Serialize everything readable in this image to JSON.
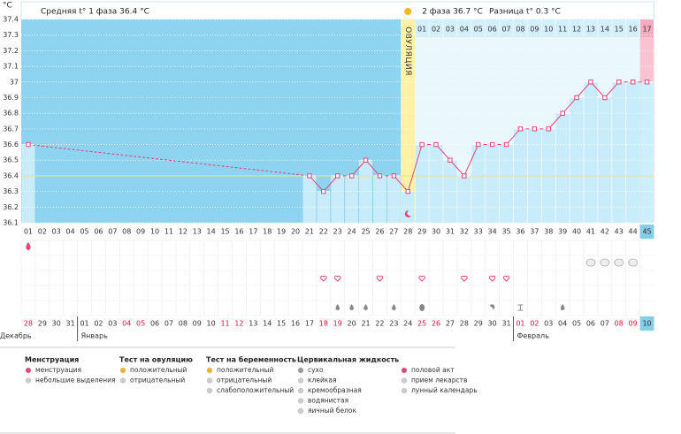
{
  "chart_data": {
    "type": "line",
    "ylabel": "°C",
    "phase1_label": "Средняя t° 1 фаза 36.4 °C",
    "phase2_label": "2 фаза 36.7 °C",
    "difference_label": "Разница t° 0.3 °C",
    "ovulation_label": "ОВУЛЯЦИЯ",
    "ovulation_day": "28",
    "coverline": 36.4,
    "color": "#e0457a",
    "categories": [
      "01",
      "02",
      "03",
      "04",
      "05",
      "06",
      "07",
      "08",
      "09",
      "10",
      "11",
      "12",
      "13",
      "14",
      "15",
      "16",
      "17",
      "18",
      "19",
      "20",
      "21",
      "22",
      "23",
      "24",
      "25",
      "26",
      "27",
      "28",
      "29",
      "30",
      "31",
      "32",
      "33",
      "34",
      "35",
      "36",
      "37",
      "38",
      "39",
      "40",
      "41",
      "42",
      "43",
      "44",
      "45"
    ],
    "values": [
      36.6,
      null,
      null,
      null,
      null,
      null,
      null,
      null,
      null,
      null,
      null,
      null,
      null,
      null,
      null,
      null,
      null,
      null,
      null,
      null,
      36.4,
      36.3,
      36.4,
      36.4,
      36.5,
      36.4,
      36.4,
      36.3,
      36.6,
      36.6,
      36.5,
      36.4,
      36.6,
      36.6,
      36.6,
      36.7,
      36.7,
      36.7,
      36.8,
      36.9,
      37.0,
      36.9,
      37.0,
      37.0,
      37.0
    ],
    "phase2_days": [
      "01",
      "02",
      "03",
      "04",
      "05",
      "06",
      "07",
      "08",
      "09",
      "10",
      "11",
      "12",
      "13",
      "14",
      "15",
      "16",
      "17"
    ],
    "ylim": [
      36.1,
      37.4
    ],
    "yticks": [
      36.1,
      36.2,
      36.3,
      36.4,
      36.5,
      36.6,
      36.7,
      36.8,
      36.9,
      37,
      37.1,
      37.2,
      37.3,
      37.4
    ],
    "grid": true,
    "dates": [
      "28",
      "29",
      "30",
      "31",
      "01",
      "02",
      "03",
      "04",
      "05",
      "06",
      "07",
      "08",
      "09",
      "10",
      "11",
      "12",
      "13",
      "14",
      "15",
      "16",
      "17",
      "18",
      "19",
      "20",
      "21",
      "22",
      "23",
      "24",
      "25",
      "26",
      "27",
      "28",
      "29",
      "30",
      "31",
      "01",
      "02",
      "03",
      "04",
      "05",
      "06",
      "07",
      "08",
      "09",
      "10"
    ],
    "weekend": [
      true,
      false,
      false,
      false,
      false,
      false,
      false,
      true,
      true,
      false,
      false,
      false,
      false,
      false,
      true,
      true,
      false,
      false,
      false,
      false,
      false,
      true,
      true,
      false,
      false,
      false,
      false,
      false,
      true,
      true,
      false,
      false,
      false,
      false,
      false,
      true,
      true,
      false,
      false,
      false,
      false,
      false,
      true,
      true,
      false
    ],
    "months": [
      "Декабрь",
      "Январь",
      "Февраль"
    ],
    "events": {
      "menstruation": [
        "01"
      ],
      "pills": [
        "41",
        "42",
        "43",
        "44"
      ],
      "sex": [
        "22",
        "23",
        "26",
        "29",
        "32",
        "34",
        "35"
      ],
      "watery": [
        "23",
        "24",
        "25",
        "27",
        "39"
      ],
      "egg_white": [
        "29"
      ],
      "creamy": [
        "34"
      ],
      "sticky": [
        "36"
      ],
      "lunar": [
        "28"
      ]
    },
    "legend": [
      {
        "title": "Менструация",
        "items": [
          "менструация",
          "небольшие выделения"
        ]
      },
      {
        "title": "Тест на овуляцию",
        "items": [
          "положительный",
          "отрицательный"
        ]
      },
      {
        "title": "Тест на беременность",
        "items": [
          "положительный",
          "отрицательный",
          "слабоположительный"
        ]
      },
      {
        "title": "Цервикальная жидкость",
        "items": [
          "сухо",
          "клейкая",
          "кремообразная",
          "водянистая",
          "яичный белок"
        ]
      },
      {
        "items": [
          "половой акт",
          "прием лекарств",
          "лунный календарь"
        ]
      }
    ]
  }
}
